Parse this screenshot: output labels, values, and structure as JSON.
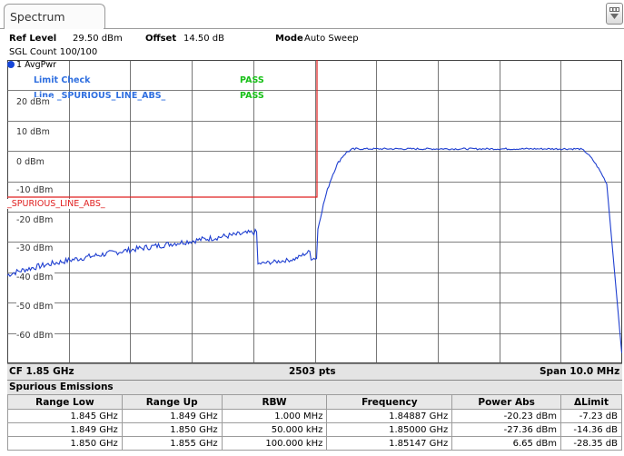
{
  "window": {
    "tab_label": "Spectrum",
    "corner_icon": "window-menu-icon"
  },
  "header": {
    "ref_level_label": "Ref Level",
    "ref_level_value": "29.50 dBm",
    "offset_label": "Offset",
    "offset_value": "14.50 dB",
    "mode_label": "Mode",
    "mode_value": "Auto Sweep",
    "sgl_count": "SGL Count 100/100"
  },
  "plot": {
    "trace_label": "1 AvgPwr",
    "limit_check_label": "Limit Check",
    "limit_check_result": "PASS",
    "line_label": "Line _SPURIOUS_LINE_ABS_",
    "line_result": "PASS",
    "limit_line_name": "_SPURIOUS_LINE_ABS_",
    "y_labels": [
      "20 dBm",
      "10 dBm",
      "0 dBm",
      "-10 dBm",
      "-20 dBm",
      "-30 dBm",
      "-40 dBm",
      "-50 dBm",
      "-60 dBm"
    ],
    "colors": {
      "trace": "#1f3fd0",
      "limit": "#e02020",
      "pass": "#18c018",
      "legend": "#2f6fe0",
      "grid": "#555555"
    }
  },
  "footer": {
    "center": "CF 1.85 GHz",
    "points": "2503 pts",
    "span": "Span 10.0 MHz"
  },
  "spurious": {
    "title": "Spurious Emissions",
    "columns": [
      "Range Low",
      "Range Up",
      "RBW",
      "Frequency",
      "Power Abs",
      "ΔLimit"
    ],
    "rows": [
      [
        "1.845 GHz",
        "1.849 GHz",
        "1.000 MHz",
        "1.84887 GHz",
        "-20.23 dBm",
        "-7.23 dB"
      ],
      [
        "1.849 GHz",
        "1.850 GHz",
        "50.000 kHz",
        "1.85000 GHz",
        "-27.36 dBm",
        "-14.36 dB"
      ],
      [
        "1.850 GHz",
        "1.855 GHz",
        "100.000 kHz",
        "1.85147 GHz",
        "6.65 dBm",
        "-28.35 dB"
      ]
    ]
  }
}
